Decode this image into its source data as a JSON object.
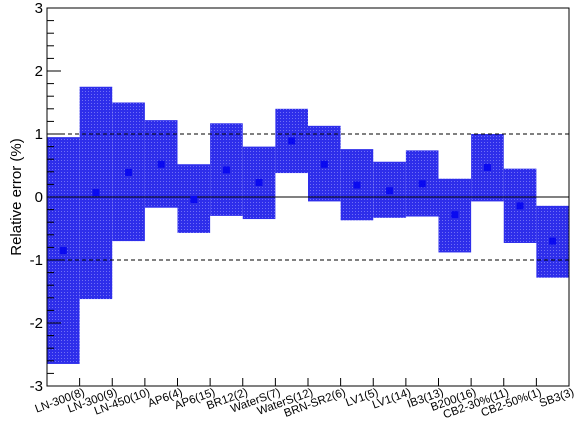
{
  "chart_data": {
    "type": "bar",
    "title": "",
    "xlabel": "",
    "ylabel": "Relative error (%)",
    "ylim": [
      -3,
      3
    ],
    "yticks": [
      "-3",
      "-2",
      "-1",
      "0",
      "1",
      "2",
      "3"
    ],
    "reference_lines": {
      "solid": [
        0
      ],
      "dashed": [
        1,
        -1
      ]
    },
    "color": "#2e2eea",
    "marker_color": "#0a0af0",
    "categories": [
      "LN-300(8)",
      "LN-300(9)",
      "LN-450(10)",
      "AP6(4)",
      "AP6(15)",
      "BR12(2)",
      "WaterS(7)",
      "WaterS(12)",
      "BRN-SR2(6)",
      "LV1(5)",
      "LV1(14)",
      "IB3(13)",
      "B200(16)",
      "CB2-30%(11)",
      "CB2-50%(1)",
      "SB3(3)"
    ],
    "values": [
      -0.85,
      0.07,
      0.39,
      0.52,
      -0.04,
      0.43,
      0.23,
      0.89,
      0.52,
      0.19,
      0.1,
      0.21,
      -0.28,
      0.47,
      -0.14,
      -0.7
    ],
    "upper": [
      0.95,
      1.75,
      1.5,
      1.22,
      0.52,
      1.17,
      0.8,
      1.4,
      1.13,
      0.76,
      0.56,
      0.74,
      0.29,
      1.0,
      0.45,
      -0.14
    ],
    "lower": [
      -2.65,
      -1.62,
      -0.7,
      -0.17,
      -0.57,
      -0.3,
      -0.35,
      0.38,
      -0.07,
      -0.37,
      -0.33,
      -0.31,
      -0.88,
      -0.07,
      -0.73,
      -1.28
    ]
  }
}
